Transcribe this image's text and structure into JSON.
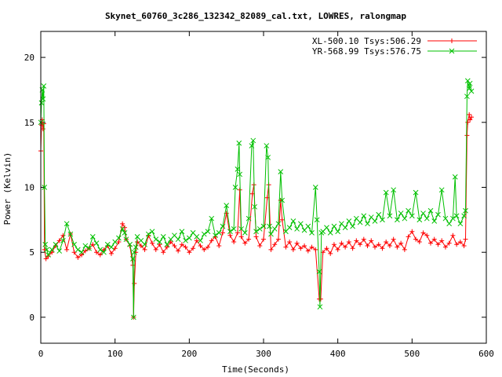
{
  "chart_data": {
    "type": "line",
    "title": "Skynet_60760_3c286_132342_82089_cal.txt, LOWRES, ralongmap",
    "xlabel": "Time(Seconds)",
    "ylabel": "Power (Kelvin)",
    "xlim": [
      0,
      600
    ],
    "ylim": [
      -2,
      22
    ],
    "x_ticks": [
      0,
      100,
      200,
      300,
      400,
      500,
      600
    ],
    "x_tick_labels": [
      "0",
      "100",
      "200",
      "300",
      "400",
      "500",
      "600"
    ],
    "y_ticks": [
      0,
      5,
      10,
      15,
      20
    ],
    "y_tick_labels": [
      "0",
      "5",
      "10",
      "15",
      "20"
    ],
    "grid": false,
    "legend_position": "top-right",
    "series": [
      {
        "name": "XL-500.10 Tsys:506.29",
        "color": "#ff0000",
        "marker": "plus",
        "points": [
          [
            0,
            12.8
          ],
          [
            1,
            14.8
          ],
          [
            2,
            15.2
          ],
          [
            3,
            14.5
          ],
          [
            4,
            14.9
          ],
          [
            5,
            5.2
          ],
          [
            7,
            4.5
          ],
          [
            10,
            4.7
          ],
          [
            15,
            5.0
          ],
          [
            20,
            5.5
          ],
          [
            25,
            5.9
          ],
          [
            30,
            6.3
          ],
          [
            35,
            5.2
          ],
          [
            40,
            6.4
          ],
          [
            45,
            5.0
          ],
          [
            50,
            4.6
          ],
          [
            55,
            4.8
          ],
          [
            60,
            5.1
          ],
          [
            65,
            5.3
          ],
          [
            70,
            5.6
          ],
          [
            75,
            5.0
          ],
          [
            80,
            4.8
          ],
          [
            85,
            5.2
          ],
          [
            90,
            5.5
          ],
          [
            95,
            4.9
          ],
          [
            100,
            5.3
          ],
          [
            105,
            5.8
          ],
          [
            110,
            7.2
          ],
          [
            113,
            6.9
          ],
          [
            115,
            6.0
          ],
          [
            120,
            5.5
          ],
          [
            124,
            4.0
          ],
          [
            125,
            0.0
          ],
          [
            126,
            2.6
          ],
          [
            128,
            5.0
          ],
          [
            130,
            5.8
          ],
          [
            135,
            5.5
          ],
          [
            140,
            5.2
          ],
          [
            145,
            6.3
          ],
          [
            150,
            5.7
          ],
          [
            155,
            5.2
          ],
          [
            160,
            5.6
          ],
          [
            165,
            5.0
          ],
          [
            170,
            5.4
          ],
          [
            175,
            5.8
          ],
          [
            180,
            5.5
          ],
          [
            185,
            5.1
          ],
          [
            190,
            5.6
          ],
          [
            195,
            5.4
          ],
          [
            200,
            5.0
          ],
          [
            205,
            5.3
          ],
          [
            210,
            5.9
          ],
          [
            215,
            5.5
          ],
          [
            220,
            5.2
          ],
          [
            225,
            5.4
          ],
          [
            230,
            5.9
          ],
          [
            235,
            6.2
          ],
          [
            240,
            5.5
          ],
          [
            245,
            6.5
          ],
          [
            250,
            8.0
          ],
          [
            255,
            6.3
          ],
          [
            260,
            5.8
          ],
          [
            265,
            6.5
          ],
          [
            268,
            9.8
          ],
          [
            270,
            6.2
          ],
          [
            275,
            5.7
          ],
          [
            280,
            6.0
          ],
          [
            285,
            9.5
          ],
          [
            287,
            10.2
          ],
          [
            290,
            6.2
          ],
          [
            295,
            5.5
          ],
          [
            300,
            6.0
          ],
          [
            305,
            9.2
          ],
          [
            307,
            10.2
          ],
          [
            310,
            5.2
          ],
          [
            315,
            5.6
          ],
          [
            320,
            6.0
          ],
          [
            323,
            9.0
          ],
          [
            325,
            7.5
          ],
          [
            330,
            5.4
          ],
          [
            335,
            5.8
          ],
          [
            340,
            5.2
          ],
          [
            345,
            5.7
          ],
          [
            350,
            5.3
          ],
          [
            355,
            5.5
          ],
          [
            360,
            5.1
          ],
          [
            365,
            5.4
          ],
          [
            370,
            5.2
          ],
          [
            375,
            1.4
          ],
          [
            377,
            1.4
          ],
          [
            380,
            5.0
          ],
          [
            385,
            5.3
          ],
          [
            390,
            4.9
          ],
          [
            395,
            5.6
          ],
          [
            400,
            5.2
          ],
          [
            405,
            5.7
          ],
          [
            410,
            5.4
          ],
          [
            415,
            5.8
          ],
          [
            420,
            5.3
          ],
          [
            425,
            5.9
          ],
          [
            430,
            5.6
          ],
          [
            435,
            6.0
          ],
          [
            440,
            5.5
          ],
          [
            445,
            5.9
          ],
          [
            450,
            5.4
          ],
          [
            455,
            5.6
          ],
          [
            460,
            5.3
          ],
          [
            465,
            5.8
          ],
          [
            470,
            5.5
          ],
          [
            475,
            6.0
          ],
          [
            480,
            5.4
          ],
          [
            485,
            5.7
          ],
          [
            490,
            5.2
          ],
          [
            495,
            6.2
          ],
          [
            500,
            6.6
          ],
          [
            505,
            6.0
          ],
          [
            510,
            5.8
          ],
          [
            515,
            6.5
          ],
          [
            520,
            6.3
          ],
          [
            525,
            5.7
          ],
          [
            530,
            6.0
          ],
          [
            535,
            5.6
          ],
          [
            540,
            5.9
          ],
          [
            545,
            5.4
          ],
          [
            550,
            5.7
          ],
          [
            555,
            6.3
          ],
          [
            560,
            5.6
          ],
          [
            565,
            5.8
          ],
          [
            570,
            5.5
          ],
          [
            572,
            6.0
          ],
          [
            574,
            14.0
          ],
          [
            575,
            15.0
          ],
          [
            577,
            15.6
          ],
          [
            578,
            15.2
          ],
          [
            580,
            15.4
          ]
        ]
      },
      {
        "name": "YR-568.99 Tsys:576.75",
        "color": "#00c000",
        "marker": "cross",
        "points": [
          [
            0,
            15.0
          ],
          [
            1,
            16.5
          ],
          [
            2,
            17.5
          ],
          [
            3,
            16.8
          ],
          [
            4,
            17.8
          ],
          [
            5,
            10.0
          ],
          [
            6,
            5.6
          ],
          [
            8,
            5.2
          ],
          [
            10,
            4.8
          ],
          [
            15,
            5.2
          ],
          [
            20,
            5.6
          ],
          [
            25,
            5.1
          ],
          [
            30,
            5.9
          ],
          [
            35,
            7.2
          ],
          [
            40,
            6.4
          ],
          [
            45,
            5.6
          ],
          [
            50,
            5.2
          ],
          [
            55,
            5.0
          ],
          [
            60,
            5.5
          ],
          [
            65,
            5.3
          ],
          [
            70,
            6.2
          ],
          [
            75,
            5.7
          ],
          [
            80,
            5.2
          ],
          [
            85,
            5.0
          ],
          [
            90,
            5.6
          ],
          [
            95,
            5.4
          ],
          [
            100,
            5.8
          ],
          [
            105,
            6.1
          ],
          [
            110,
            6.8
          ],
          [
            113,
            6.5
          ],
          [
            115,
            6.0
          ],
          [
            120,
            5.6
          ],
          [
            124,
            4.5
          ],
          [
            125,
            0.0
          ],
          [
            126,
            5.0
          ],
          [
            128,
            5.4
          ],
          [
            130,
            6.2
          ],
          [
            135,
            5.9
          ],
          [
            140,
            5.6
          ],
          [
            145,
            6.4
          ],
          [
            150,
            6.6
          ],
          [
            155,
            6.0
          ],
          [
            160,
            5.8
          ],
          [
            165,
            6.2
          ],
          [
            170,
            5.6
          ],
          [
            175,
            6.0
          ],
          [
            180,
            6.3
          ],
          [
            185,
            6.0
          ],
          [
            190,
            6.6
          ],
          [
            195,
            5.9
          ],
          [
            200,
            6.1
          ],
          [
            205,
            6.5
          ],
          [
            210,
            6.2
          ],
          [
            215,
            5.9
          ],
          [
            220,
            6.4
          ],
          [
            225,
            6.6
          ],
          [
            230,
            7.6
          ],
          [
            235,
            6.3
          ],
          [
            240,
            6.5
          ],
          [
            245,
            7.0
          ],
          [
            250,
            8.6
          ],
          [
            255,
            6.6
          ],
          [
            260,
            6.8
          ],
          [
            262,
            10.0
          ],
          [
            265,
            11.4
          ],
          [
            267,
            13.4
          ],
          [
            268,
            11.0
          ],
          [
            270,
            6.8
          ],
          [
            275,
            6.5
          ],
          [
            280,
            7.6
          ],
          [
            284,
            13.2
          ],
          [
            286,
            13.6
          ],
          [
            288,
            8.5
          ],
          [
            290,
            6.6
          ],
          [
            295,
            6.8
          ],
          [
            300,
            7.0
          ],
          [
            304,
            13.2
          ],
          [
            306,
            12.3
          ],
          [
            308,
            7.0
          ],
          [
            310,
            6.4
          ],
          [
            315,
            6.8
          ],
          [
            320,
            7.2
          ],
          [
            323,
            11.2
          ],
          [
            325,
            9.0
          ],
          [
            330,
            6.6
          ],
          [
            335,
            6.9
          ],
          [
            340,
            7.4
          ],
          [
            345,
            6.8
          ],
          [
            350,
            7.2
          ],
          [
            355,
            6.7
          ],
          [
            360,
            7.0
          ],
          [
            365,
            6.5
          ],
          [
            370,
            10.0
          ],
          [
            372,
            7.5
          ],
          [
            375,
            3.5
          ],
          [
            376,
            0.8
          ],
          [
            378,
            6.5
          ],
          [
            380,
            6.6
          ],
          [
            385,
            6.9
          ],
          [
            390,
            6.5
          ],
          [
            395,
            7.0
          ],
          [
            400,
            6.6
          ],
          [
            405,
            7.2
          ],
          [
            410,
            6.9
          ],
          [
            415,
            7.4
          ],
          [
            420,
            7.0
          ],
          [
            425,
            7.6
          ],
          [
            430,
            7.3
          ],
          [
            435,
            7.8
          ],
          [
            440,
            7.2
          ],
          [
            445,
            7.7
          ],
          [
            450,
            7.4
          ],
          [
            455,
            7.9
          ],
          [
            460,
            7.5
          ],
          [
            465,
            9.6
          ],
          [
            470,
            7.8
          ],
          [
            475,
            9.8
          ],
          [
            480,
            7.5
          ],
          [
            485,
            8.0
          ],
          [
            490,
            7.6
          ],
          [
            495,
            8.2
          ],
          [
            500,
            7.8
          ],
          [
            505,
            9.6
          ],
          [
            510,
            7.5
          ],
          [
            515,
            8.0
          ],
          [
            520,
            7.6
          ],
          [
            525,
            8.2
          ],
          [
            530,
            7.4
          ],
          [
            535,
            7.9
          ],
          [
            540,
            9.8
          ],
          [
            545,
            7.6
          ],
          [
            550,
            7.2
          ],
          [
            555,
            7.6
          ],
          [
            558,
            10.8
          ],
          [
            560,
            7.8
          ],
          [
            565,
            7.2
          ],
          [
            570,
            7.8
          ],
          [
            572,
            8.2
          ],
          [
            574,
            17.0
          ],
          [
            575,
            18.2
          ],
          [
            577,
            17.6
          ],
          [
            578,
            18.0
          ],
          [
            580,
            17.4
          ]
        ]
      }
    ]
  }
}
